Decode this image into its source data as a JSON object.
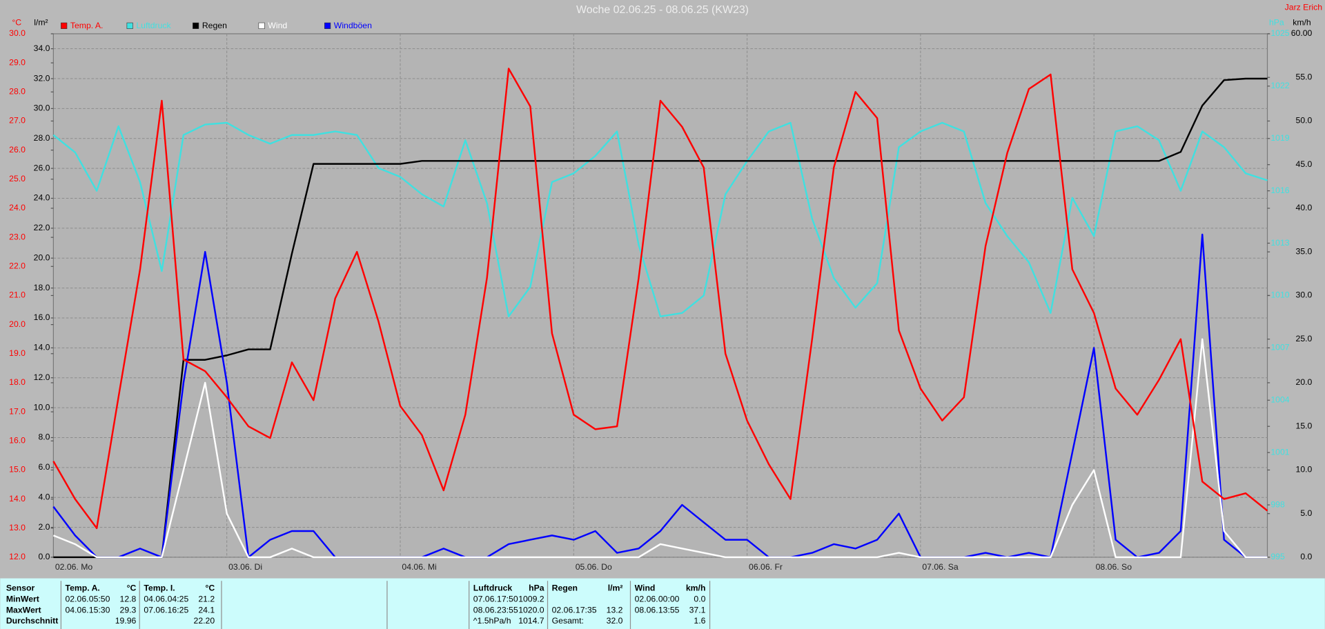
{
  "chart_data": {
    "type": "line",
    "title": "Woche 02.06.25 - 08.06.25 (KW23)",
    "author": "Jarz Erich",
    "ylabel": "°C",
    "y2label": "l/m²",
    "y3label": "km/h",
    "y4label": "hPa",
    "grid": true,
    "categories": [
      "02.06. Mo",
      null,
      null,
      null,
      null,
      null,
      null,
      null,
      "03.06. Di",
      null,
      null,
      null,
      null,
      null,
      null,
      null,
      "04.06. Mi",
      null,
      null,
      null,
      null,
      null,
      null,
      null,
      "05.06. Do",
      null,
      null,
      null,
      null,
      null,
      null,
      null,
      "06.06. Fr",
      null,
      null,
      null,
      null,
      null,
      null,
      null,
      "07.06. Sa",
      null,
      null,
      null,
      null,
      null,
      null,
      null,
      "08.06. So",
      null,
      null,
      null,
      null,
      null,
      null,
      null,
      null
    ],
    "ylim": [
      12,
      30
    ],
    "yticks": [
      {
        "value": 12,
        "label": "12.0"
      },
      {
        "value": 13,
        "label": "13.0"
      },
      {
        "value": 14,
        "label": "14.0"
      },
      {
        "value": 15,
        "label": "15.0"
      },
      {
        "value": 16,
        "label": "16.0"
      },
      {
        "value": 17,
        "label": "17.0"
      },
      {
        "value": 18,
        "label": "18.0"
      },
      {
        "value": 19,
        "label": "19.0"
      },
      {
        "value": 20,
        "label": "20.0"
      },
      {
        "value": 21,
        "label": "21.0"
      },
      {
        "value": 22,
        "label": "22.0"
      },
      {
        "value": 23,
        "label": "23.0"
      },
      {
        "value": 24,
        "label": "24.0"
      },
      {
        "value": 25,
        "label": "25.0"
      },
      {
        "value": 26,
        "label": "26.0"
      },
      {
        "value": 27,
        "label": "27.0"
      },
      {
        "value": 28,
        "label": "28.0"
      },
      {
        "value": 29,
        "label": "29.0"
      },
      {
        "value": 30,
        "label": "30.0"
      }
    ],
    "y2lim": [
      0,
      35
    ],
    "y2ticks": [
      {
        "value": 0,
        "label": "0.0"
      },
      {
        "value": 2,
        "label": "2.0"
      },
      {
        "value": 4,
        "label": "4.0"
      },
      {
        "value": 6,
        "label": "6.0"
      },
      {
        "value": 8,
        "label": "8.0"
      },
      {
        "value": 10,
        "label": "10.0"
      },
      {
        "value": 12,
        "label": "12.0"
      },
      {
        "value": 14,
        "label": "14.0"
      },
      {
        "value": 16,
        "label": "16.0"
      },
      {
        "value": 18,
        "label": "18.0"
      },
      {
        "value": 20,
        "label": "20.0"
      },
      {
        "value": 22,
        "label": "22.0"
      },
      {
        "value": 24,
        "label": "24.0"
      },
      {
        "value": 26,
        "label": "26.0"
      },
      {
        "value": 28,
        "label": "28.0"
      },
      {
        "value": 30,
        "label": "30.0"
      },
      {
        "value": 32,
        "label": "32.0"
      },
      {
        "value": 34,
        "label": "34.0"
      }
    ],
    "y3lim": [
      0,
      60
    ],
    "y3ticks": [
      {
        "value": 0,
        "label": "0.0"
      },
      {
        "value": 5,
        "label": "5.0"
      },
      {
        "value": 10,
        "label": "10.0"
      },
      {
        "value": 15,
        "label": "15.0"
      },
      {
        "value": 20,
        "label": "20.0"
      },
      {
        "value": 25,
        "label": "25.0"
      },
      {
        "value": 30,
        "label": "30.0"
      },
      {
        "value": 35,
        "label": "35.0"
      },
      {
        "value": 40,
        "label": "40.0"
      },
      {
        "value": 45,
        "label": "45.0"
      },
      {
        "value": 50,
        "label": "50.0"
      },
      {
        "value": 55,
        "label": "55.0"
      },
      {
        "value": 60,
        "label": "60.00"
      }
    ],
    "y4lim": [
      995,
      1025
    ],
    "y4ticks": [
      995,
      998,
      1001,
      1004,
      1007,
      1010,
      1013,
      1016,
      1019,
      1022,
      1025
    ],
    "series": [
      {
        "name": "Temp. A.",
        "color": "#ff0000",
        "axis": "y",
        "values": [
          15.3,
          14.0,
          13.0,
          17.5,
          21.9,
          27.7,
          18.8,
          18.4,
          17.5,
          16.5,
          16.1,
          18.7,
          17.4,
          20.9,
          22.5,
          20.1,
          17.2,
          16.2,
          14.3,
          16.9,
          21.6,
          28.8,
          27.5,
          19.7,
          16.9,
          16.4,
          16.5,
          21.6,
          27.7,
          26.8,
          25.4,
          19.0,
          16.7,
          15.2,
          14.0,
          19.5,
          25.4,
          28.0,
          27.1,
          19.8,
          17.8,
          16.7,
          17.5,
          22.7,
          25.9,
          28.1,
          28.6,
          21.9,
          20.4,
          17.8,
          16.9,
          18.1,
          19.5,
          14.6,
          14.0,
          14.2,
          13.6
        ]
      },
      {
        "name": "Luftdruck",
        "color": "#40e0e0",
        "axis": "y4",
        "values": [
          1019.2,
          1018.2,
          1016.0,
          1019.7,
          1016.5,
          1011.4,
          1019.2,
          1019.8,
          1019.9,
          1019.2,
          1018.7,
          1019.2,
          1019.2,
          1019.4,
          1019.2,
          1017.3,
          1016.8,
          1015.8,
          1015.1,
          1018.9,
          1015.3,
          1008.8,
          1010.5,
          1016.5,
          1017.0,
          1018.0,
          1019.4,
          1012.9,
          1008.8,
          1009.0,
          1010.0,
          1015.8,
          1017.7,
          1019.4,
          1019.9,
          1014.4,
          1011.0,
          1009.3,
          1010.7,
          1018.5,
          1019.4,
          1019.9,
          1019.4,
          1015.3,
          1013.4,
          1011.9,
          1009.0,
          1015.6,
          1013.4,
          1019.4,
          1019.7,
          1018.9,
          1016.0,
          1019.4,
          1018.5,
          1017.0,
          1016.6
        ]
      },
      {
        "name": "Regen",
        "color": "#000000",
        "axis": "y2",
        "values": [
          0,
          0,
          0,
          0,
          0,
          0,
          13.2,
          13.2,
          13.5,
          13.9,
          13.9,
          20.3,
          26.3,
          26.3,
          26.3,
          26.3,
          26.3,
          26.5,
          26.5,
          26.5,
          26.5,
          26.5,
          26.5,
          26.5,
          26.5,
          26.5,
          26.5,
          26.5,
          26.5,
          26.5,
          26.5,
          26.5,
          26.5,
          26.5,
          26.5,
          26.5,
          26.5,
          26.5,
          26.5,
          26.5,
          26.5,
          26.5,
          26.5,
          26.5,
          26.5,
          26.5,
          26.5,
          26.5,
          26.5,
          26.5,
          26.5,
          26.5,
          27.1,
          30.2,
          31.9,
          32.0,
          32.0
        ]
      },
      {
        "name": "Wind",
        "color": "#ffffff",
        "axis": "y3",
        "values": [
          2.5,
          1.5,
          0,
          0,
          0,
          0,
          10,
          20,
          5,
          0,
          0,
          1,
          0,
          0,
          0,
          0,
          0,
          0,
          0,
          0,
          0,
          0,
          0,
          0,
          0,
          0,
          0,
          0,
          1.5,
          1,
          0.5,
          0,
          0,
          0,
          0,
          0,
          0,
          0,
          0,
          0.5,
          0,
          0,
          0,
          0,
          0,
          0,
          0,
          6,
          10,
          0,
          0,
          0,
          0,
          25,
          3,
          0,
          0
        ]
      },
      {
        "name": "Windböen",
        "color": "#0000ff",
        "axis": "y3",
        "values": [
          5.8,
          2.5,
          0,
          0,
          1,
          0,
          20,
          35,
          20,
          0,
          2,
          3,
          3,
          0,
          0,
          0,
          0,
          0,
          1,
          0,
          0,
          1.5,
          2,
          2.5,
          2,
          3,
          0.5,
          1,
          3,
          6,
          4,
          2,
          2,
          0,
          0,
          0.5,
          1.5,
          1,
          2,
          5,
          0,
          0,
          0,
          0.5,
          0,
          0.5,
          0,
          12,
          24,
          2,
          0,
          0.5,
          3,
          37,
          2,
          0,
          0
        ]
      }
    ]
  },
  "table": {
    "row_labels": {
      "header": "Sensor",
      "rows": [
        "MinWert",
        "MaxWert",
        "Durchschnitt"
      ]
    },
    "sections": [
      {
        "title": "Temp. A.",
        "unit": "°C",
        "rows": [
          [
            "02.06.",
            "05:50",
            "12.8"
          ],
          [
            "04.06.",
            "15:30",
            "29.3"
          ],
          [
            "19.96"
          ]
        ]
      },
      {
        "title": "Temp. I.",
        "unit": "°C",
        "rows": [
          [
            "04.06.",
            "04:25",
            "21.2"
          ],
          [
            "07.06.",
            "16:25",
            "24.1"
          ],
          [
            "22.20"
          ]
        ]
      },
      {
        "title": "Luftdruck",
        "unit": "hPa",
        "rows": [
          [
            "07.06.",
            "17:50",
            "1009.2"
          ],
          [
            "08.06.",
            "23:55",
            "1020.0"
          ],
          [
            "^1.5hPa/h",
            "1014.7"
          ]
        ]
      },
      {
        "title": "Regen",
        "unit": "l/m²",
        "rows": [
          [],
          [
            "02.06.",
            "17:35",
            "13.2"
          ],
          [
            "Gesamt:",
            "32.0"
          ]
        ]
      },
      {
        "title": "Wind",
        "unit": "km/h",
        "rows": [
          [
            "02.06.",
            "00:00",
            "0.0"
          ],
          [
            "08.06.",
            "13:55",
            "37.1"
          ],
          [
            "1.6"
          ]
        ]
      }
    ]
  }
}
